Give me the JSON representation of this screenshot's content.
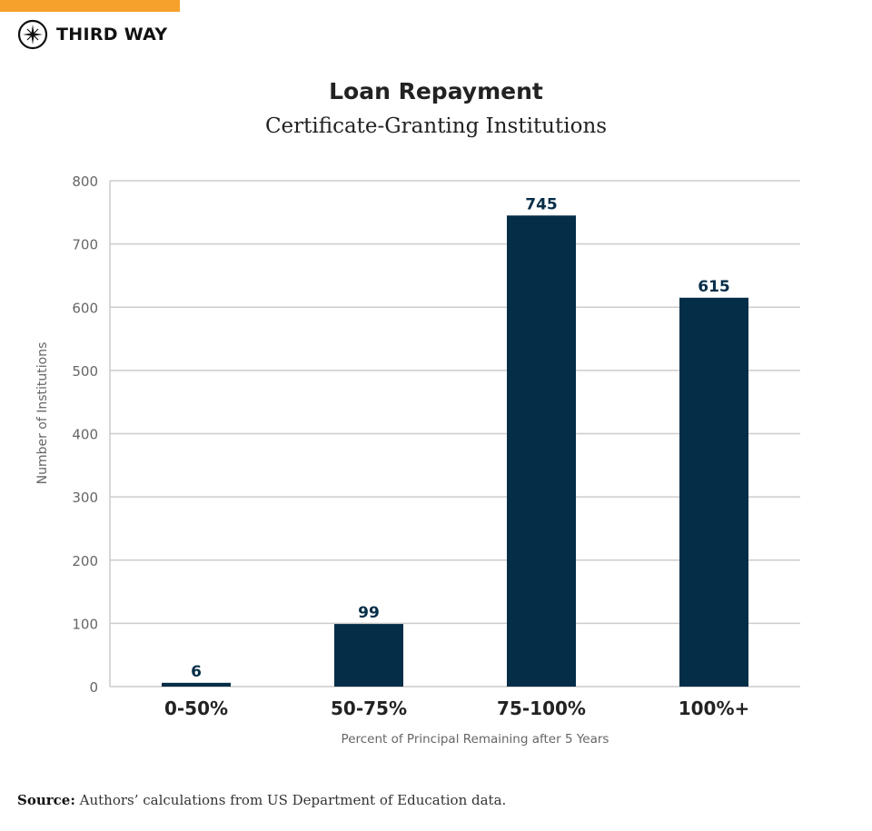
{
  "brand": {
    "name": "THIRD WAY",
    "accent": "#f6a12c",
    "logo_icon": "compass-star-icon"
  },
  "chart_data": {
    "type": "bar",
    "title": "Loan Repayment",
    "subtitle": "Certificate-Granting Institutions",
    "categories": [
      "0-50%",
      "50-75%",
      "75-100%",
      "100%+"
    ],
    "values": [
      6,
      99,
      745,
      615
    ],
    "data_labels": [
      "6",
      "99",
      "745",
      "615"
    ],
    "xlabel": "Percent of Principal Remaining after 5 Years",
    "ylabel": "Number of Institutions",
    "ylim": [
      0,
      800
    ],
    "yticks": [
      0,
      100,
      200,
      300,
      400,
      500,
      600,
      700,
      800
    ],
    "grid": true,
    "bar_color": "#042d48"
  },
  "source": {
    "label": "Source:",
    "text": " Authors’ calculations from US Department of Education data."
  }
}
